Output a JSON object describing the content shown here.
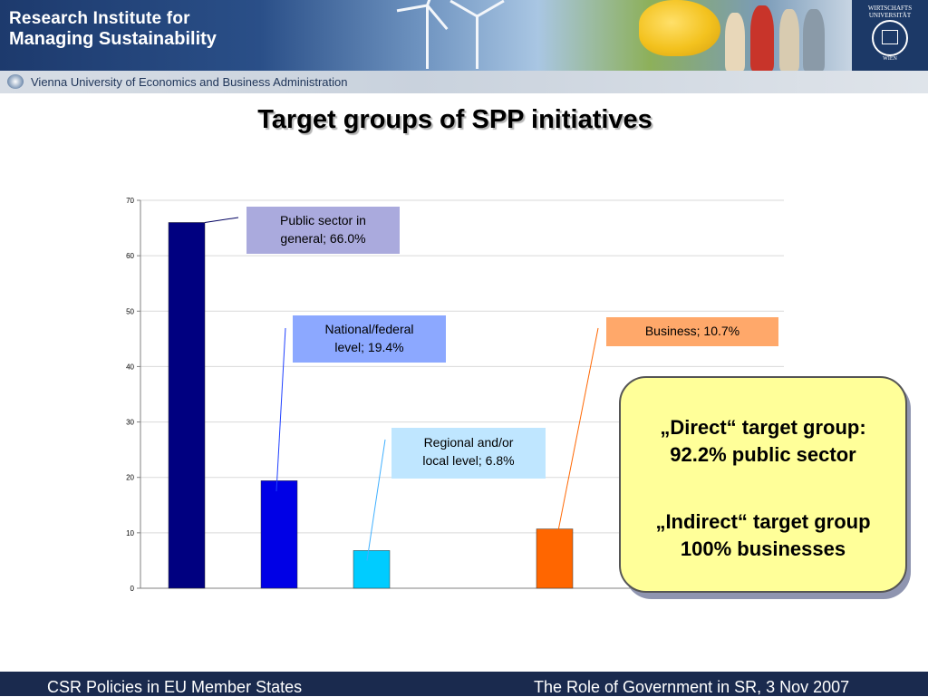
{
  "header": {
    "org_line1": "Research Institute for",
    "org_line2": "Managing Sustainability",
    "university": "Vienna University of Economics and Business Administration",
    "crest_text": "WIRTSCHAFTS UNIVERSITÄT",
    "crest_city": "WIEN"
  },
  "slide": {
    "title": "Target groups of SPP initiatives"
  },
  "chart_data": {
    "type": "bar",
    "title": "Target groups of SPP initiatives",
    "ylim": [
      0,
      70
    ],
    "yticks": [
      0,
      10,
      20,
      30,
      40,
      50,
      60,
      70
    ],
    "grid": true,
    "categories": [
      "Public sector in general",
      "National/federal level",
      "Regional and/or local level",
      "",
      "Business"
    ],
    "values": [
      66.0,
      19.4,
      6.8,
      null,
      10.7
    ],
    "colors": [
      "#000080",
      "#0000e6",
      "#00ccff",
      null,
      "#ff6600"
    ],
    "data_labels": [
      {
        "text": "Public sector in general; 66.0%",
        "lines": [
          "Public sector in",
          "general; 66.0%"
        ],
        "bg": "#aaaadd"
      },
      {
        "text": "National/federal level; 19.4%",
        "lines": [
          "National/federal",
          "level; 19.4%"
        ],
        "bg": "#8ca8ff"
      },
      {
        "text": "Regional and/or local level; 6.8%",
        "lines": [
          "Regional and/or",
          "local level; 6.8%"
        ],
        "bg": "#bfe6ff"
      },
      null,
      {
        "text": "Business; 10.7%",
        "lines": [
          "Business; 10.7%"
        ],
        "bg": "#ffa86a"
      }
    ]
  },
  "callout": {
    "line1": "„Direct“ target group:",
    "line2": "92.2% public sector",
    "line3": "„Indirect“ target group",
    "line4": "100% businesses",
    "bg": "#ffff99"
  },
  "footer": {
    "left": "CSR Policies in EU Member States",
    "right": "The Role of Government in SR, 3 Nov 2007"
  }
}
